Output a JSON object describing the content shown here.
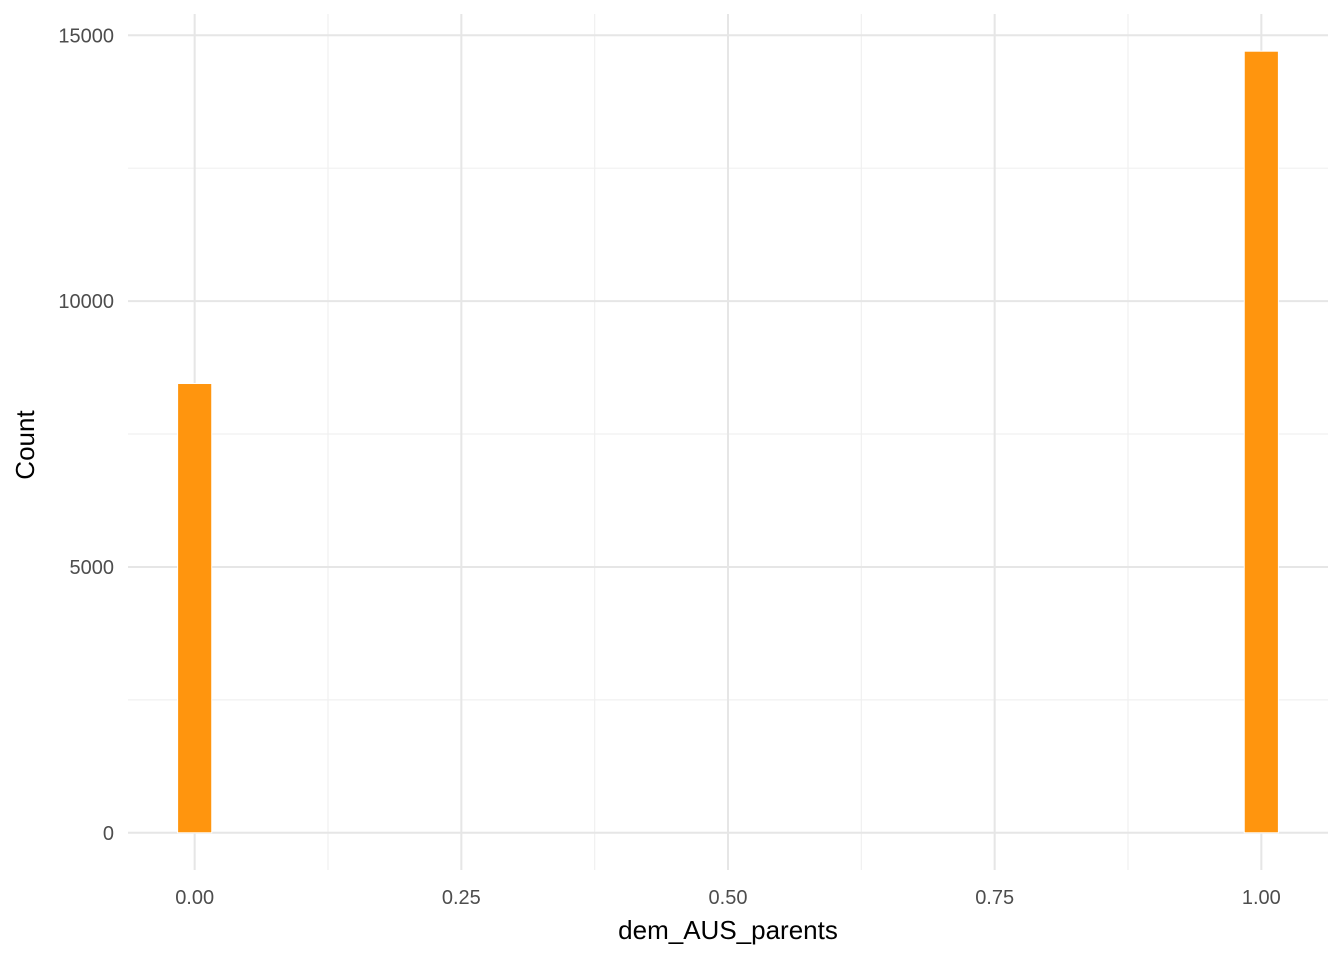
{
  "chart_data": {
    "type": "bar",
    "subtype": "histogram",
    "title": "",
    "xlabel": "dem_AUS_parents",
    "ylabel": "Count",
    "x_ticks": [
      0.0,
      0.25,
      0.5,
      0.75,
      1.0
    ],
    "x_tick_labels": [
      "0.00",
      "0.25",
      "0.50",
      "0.75",
      "1.00"
    ],
    "y_ticks": [
      0,
      5000,
      10000,
      15000
    ],
    "y_tick_labels": [
      "0",
      "5000",
      "10000",
      "15000"
    ],
    "xlim": [
      -0.0625,
      1.0625
    ],
    "ylim": [
      -700,
      15400
    ],
    "bins": [
      {
        "x_start": -0.016,
        "x_end": 0.016,
        "count": 8450
      },
      {
        "x_start": 0.984,
        "x_end": 1.016,
        "count": 14700
      }
    ],
    "grid": true,
    "bar_color": "#ff950e",
    "legend": "none"
  }
}
